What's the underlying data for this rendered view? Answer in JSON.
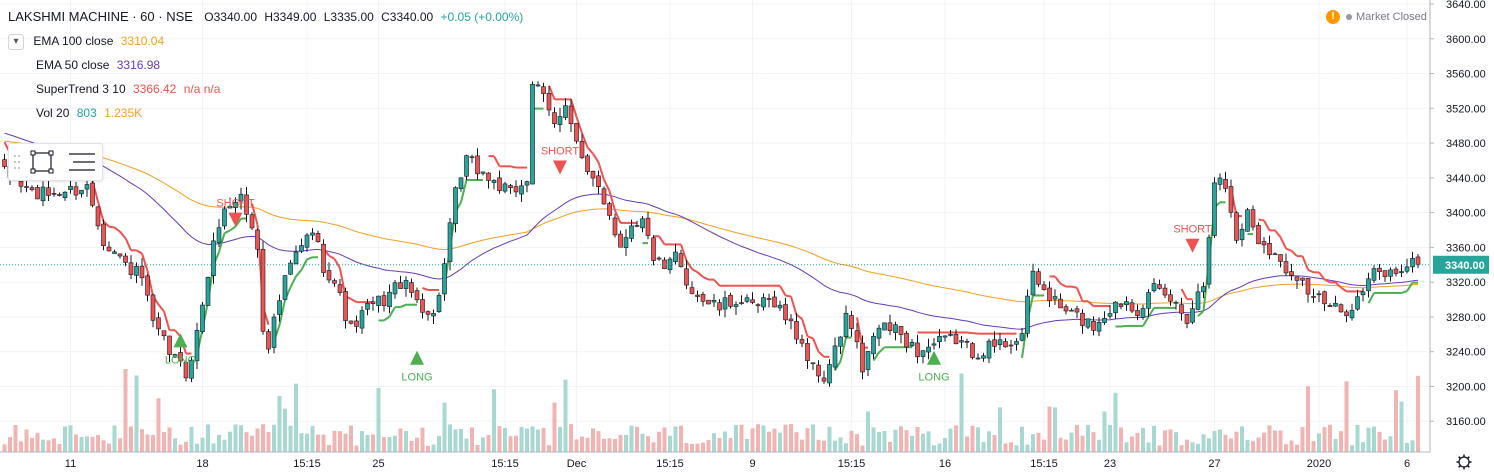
{
  "header": {
    "symbol": "LAKSHMI MACHINE · 60 · NSE",
    "open": "O3340.00",
    "high": "H3349.00",
    "low": "L3335.00",
    "close": "C3340.00",
    "change": "+0.05 (+0.00%)"
  },
  "indicators": [
    {
      "name": "EMA 100 close",
      "value": "3310.04",
      "color": "#f0a020"
    },
    {
      "name": "EMA 50 close",
      "value": "3316.98",
      "color": "#673ab7"
    },
    {
      "name": "SuperTrend 3 10",
      "value": "3366.42",
      "extra": "n/a n/a",
      "color": "#ef5350"
    },
    {
      "name": "Vol 20",
      "value": "803",
      "extra": "1.235K",
      "color": "#26a69a",
      "extra_color": "#f0a020"
    }
  ],
  "status": {
    "label": "Market Closed",
    "warning_icon": "warning-icon"
  },
  "colors": {
    "up": "#26a69a",
    "down": "#ef5350",
    "wick": "#000000",
    "ema100": "#f0a020",
    "ema50": "#673ab7",
    "st_down": "#ef5350",
    "st_up": "#4caf50",
    "vol_up": "#a8d8d2",
    "vol_down": "#f2b4b2",
    "price_label_bg": "#26a69a"
  },
  "chart_data": {
    "type": "candlestick",
    "title": "LAKSHMI MACHINE · 60 · NSE",
    "y_axis": {
      "min": 3120,
      "max": 3640,
      "ticks": [
        "3640.00",
        "3600.00",
        "3560.00",
        "3520.00",
        "3480.00",
        "3440.00",
        "3400.00",
        "3360.00",
        "3320.00",
        "3280.00",
        "3240.00",
        "3200.00",
        "3160.00"
      ]
    },
    "last_price": "3340.00",
    "x_axis_ticks": [
      {
        "label": "11",
        "idx": 12
      },
      {
        "label": "18",
        "idx": 36
      },
      {
        "label": "15:15",
        "idx": 55
      },
      {
        "label": "25",
        "idx": 68
      },
      {
        "label": "15:15",
        "idx": 91
      },
      {
        "label": "Dec",
        "idx": 104
      },
      {
        "label": "15:15",
        "idx": 121
      },
      {
        "label": "9",
        "idx": 136
      },
      {
        "label": "15:15",
        "idx": 154
      },
      {
        "label": "16",
        "idx": 171
      },
      {
        "label": "15:15",
        "idx": 189
      },
      {
        "label": "23",
        "idx": 201
      },
      {
        "label": "27",
        "idx": 220
      },
      {
        "label": "2020",
        "idx": 239
      },
      {
        "label": "6",
        "idx": 255
      }
    ],
    "anchors": [
      [
        0,
        3445
      ],
      [
        6,
        3420
      ],
      [
        12,
        3425
      ],
      [
        15,
        3430
      ],
      [
        18,
        3370
      ],
      [
        22,
        3340
      ],
      [
        25,
        3325
      ],
      [
        27,
        3270
      ],
      [
        30,
        3240
      ],
      [
        33,
        3215
      ],
      [
        35,
        3260
      ],
      [
        37,
        3330
      ],
      [
        39,
        3390
      ],
      [
        41,
        3410
      ],
      [
        43,
        3420
      ],
      [
        45,
        3380
      ],
      [
        46,
        3360
      ],
      [
        47,
        3270
      ],
      [
        48,
        3250
      ],
      [
        50,
        3300
      ],
      [
        52,
        3340
      ],
      [
        54,
        3360
      ],
      [
        56,
        3380
      ],
      [
        58,
        3340
      ],
      [
        60,
        3320
      ],
      [
        63,
        3265
      ],
      [
        66,
        3290
      ],
      [
        69,
        3300
      ],
      [
        72,
        3320
      ],
      [
        75,
        3300
      ],
      [
        78,
        3280
      ],
      [
        80,
        3340
      ],
      [
        82,
        3420
      ],
      [
        84,
        3460
      ],
      [
        86,
        3450
      ],
      [
        88,
        3440
      ],
      [
        90,
        3430
      ],
      [
        92,
        3420
      ],
      [
        95,
        3440
      ],
      [
        96,
        3550
      ],
      [
        98,
        3530
      ],
      [
        100,
        3500
      ],
      [
        102,
        3530
      ],
      [
        104,
        3480
      ],
      [
        106,
        3440
      ],
      [
        108,
        3430
      ],
      [
        110,
        3400
      ],
      [
        112,
        3360
      ],
      [
        114,
        3390
      ],
      [
        116,
        3390
      ],
      [
        118,
        3350
      ],
      [
        120,
        3330
      ],
      [
        122,
        3350
      ],
      [
        124,
        3320
      ],
      [
        127,
        3300
      ],
      [
        130,
        3290
      ],
      [
        133,
        3300
      ],
      [
        136,
        3290
      ],
      [
        140,
        3300
      ],
      [
        142,
        3280
      ],
      [
        145,
        3250
      ],
      [
        147,
        3220
      ],
      [
        149,
        3210
      ],
      [
        151,
        3240
      ],
      [
        153,
        3280
      ],
      [
        155,
        3250
      ],
      [
        156,
        3210
      ],
      [
        158,
        3260
      ],
      [
        160,
        3270
      ],
      [
        163,
        3260
      ],
      [
        166,
        3240
      ],
      [
        170,
        3250
      ],
      [
        173,
        3255
      ],
      [
        176,
        3240
      ],
      [
        179,
        3245
      ],
      [
        182,
        3250
      ],
      [
        185,
        3260
      ],
      [
        187,
        3330
      ],
      [
        189,
        3310
      ],
      [
        192,
        3290
      ],
      [
        195,
        3280
      ],
      [
        198,
        3270
      ],
      [
        201,
        3290
      ],
      [
        204,
        3300
      ],
      [
        206,
        3290
      ],
      [
        209,
        3310
      ],
      [
        212,
        3300
      ],
      [
        215,
        3280
      ],
      [
        218,
        3320
      ],
      [
        220,
        3440
      ],
      [
        222,
        3430
      ],
      [
        224,
        3370
      ],
      [
        226,
        3400
      ],
      [
        228,
        3370
      ],
      [
        230,
        3360
      ],
      [
        232,
        3340
      ],
      [
        235,
        3330
      ],
      [
        237,
        3310
      ],
      [
        239,
        3300
      ],
      [
        241,
        3290
      ],
      [
        243,
        3285
      ],
      [
        246,
        3300
      ],
      [
        249,
        3330
      ],
      [
        252,
        3330
      ],
      [
        255,
        3340
      ]
    ],
    "signals": [
      {
        "label": "LONG",
        "idx": 32,
        "price": 3245,
        "dir": "up"
      },
      {
        "label": "SHORT",
        "idx": 42,
        "price": 3400,
        "dir": "down"
      },
      {
        "label": "LONG",
        "idx": 75,
        "price": 3225,
        "dir": "up"
      },
      {
        "label": "SHORT",
        "idx": 101,
        "price": 3460,
        "dir": "down"
      },
      {
        "label": "LONG",
        "idx": 169,
        "price": 3225,
        "dir": "up"
      },
      {
        "label": "SHORT",
        "idx": 216,
        "price": 3370,
        "dir": "down"
      }
    ]
  }
}
